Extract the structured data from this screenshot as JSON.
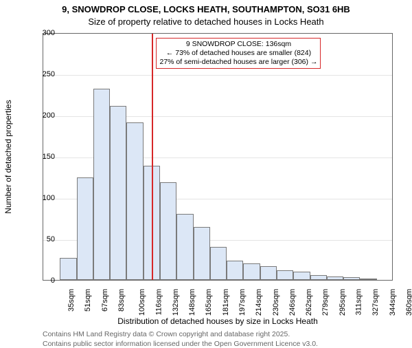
{
  "title_line1": "9, SNOWDROP CLOSE, LOCKS HEATH, SOUTHAMPTON, SO31 6HB",
  "title_line2": "Size of property relative to detached houses in Locks Heath",
  "ylabel": "Number of detached properties",
  "xlabel": "Distribution of detached houses by size in Locks Heath",
  "footer1": "Contains HM Land Registry data © Crown copyright and database right 2025.",
  "footer2": "Contains public sector information licensed under the Open Government Licence v3.0.",
  "chart": {
    "type": "histogram",
    "ylim": [
      0,
      300
    ],
    "ytick_step": 50,
    "background_color": "#ffffff",
    "grid_color": "#e4e4e4",
    "border_color": "#666666",
    "bar_fill": "#dce7f6",
    "bar_border": "#7a7a7a",
    "bar_gap_ratio": 0.0,
    "x_labels": [
      "35sqm",
      "51sqm",
      "67sqm",
      "83sqm",
      "100sqm",
      "116sqm",
      "132sqm",
      "148sqm",
      "165sqm",
      "181sqm",
      "197sqm",
      "214sqm",
      "230sqm",
      "246sqm",
      "262sqm",
      "279sqm",
      "295sqm",
      "311sqm",
      "327sqm",
      "344sqm",
      "360sqm"
    ],
    "values": [
      0,
      27,
      124,
      232,
      211,
      191,
      138,
      118,
      80,
      64,
      40,
      23,
      20,
      17,
      12,
      10,
      6,
      4,
      3,
      1,
      0
    ],
    "marker_line": {
      "x_value": 136,
      "x_min": 35,
      "x_max": 360,
      "color": "#d62728"
    },
    "annotation": {
      "border_color": "#d62728",
      "lines": [
        "9 SNOWDROP CLOSE: 136sqm",
        "← 73% of detached houses are smaller (824)",
        "27% of semi-detached houses are larger (306) →"
      ]
    },
    "label_fontsize": 11,
    "title_fontsize": 13
  }
}
